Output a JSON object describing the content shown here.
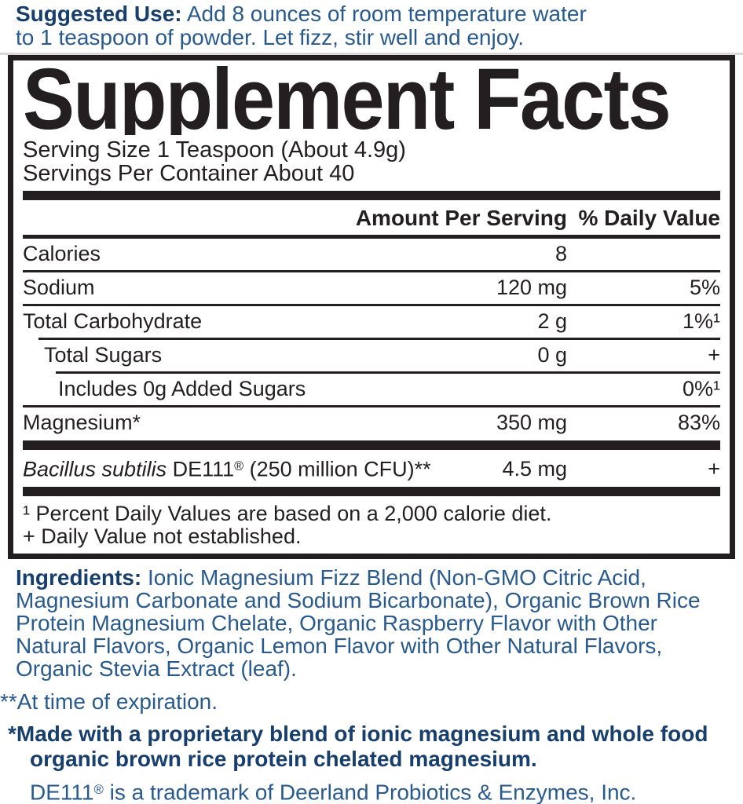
{
  "colors": {
    "blue_bold": "#173f6e",
    "blue_regular": "#285a8f",
    "label_black": "#231f20",
    "top_rule_gray": "#d8d8d8"
  },
  "suggested_use": {
    "label": "Suggested Use:",
    "text": "Add 8 ounces of room temperature water\nto 1 teaspoon of powder. Let fizz, stir well and enjoy."
  },
  "facts": {
    "title": "Supplement Facts",
    "serving_size": "Serving Size 1 Teaspoon (About 4.9g)",
    "servings_per_container": "Servings Per Container About 40",
    "col_amount": "Amount Per Serving",
    "col_dv": "% Daily Value",
    "rows": [
      {
        "name": "Calories",
        "amount": "8",
        "dv": ""
      },
      {
        "name": "Sodium",
        "amount": "120 mg",
        "dv": "5%"
      },
      {
        "name": "Total Carbohydrate",
        "amount": "2 g",
        "dv": "1%¹"
      },
      {
        "name": "Total Sugars",
        "amount": "0 g",
        "dv": "+"
      },
      {
        "name": "Includes 0g Added Sugars",
        "amount": "",
        "dv": "0%¹"
      },
      {
        "name": "Magnesium*",
        "amount": "350 mg",
        "dv": "83%"
      },
      {
        "name_italic": "Bacillus subtilis",
        "name_mid": " DE111",
        "name_reg": "®",
        "name_rest": " (250 million CFU)**",
        "amount": "4.5 mg",
        "dv": "+"
      }
    ],
    "footnotes": [
      "¹ Percent Daily Values are based on a 2,000 calorie diet.",
      "+ Daily Value not established."
    ]
  },
  "ingredients": {
    "label": "Ingredients:",
    "text": "Ionic Magnesium Fizz Blend (Non-GMO Citric Acid,\nMagnesium Carbonate and Sodium Bicarbonate), Organic Brown Rice\nProtein Magnesium Chelate, Organic Raspberry Flavor with Other\nNatural Flavors, Organic Lemon Flavor with Other Natural Flavors,\nOrganic Stevia Extract (leaf)."
  },
  "notes": {
    "expiration": "**At time of expiration.",
    "proprietary": "*Made with a proprietary blend of ionic magnesium and whole food\norganic brown rice protein chelated magnesium.",
    "trademark_name": "DE111",
    "trademark_reg": "®",
    "trademark_rest": " is a trademark of Deerland Probiotics & Enzymes, Inc."
  }
}
